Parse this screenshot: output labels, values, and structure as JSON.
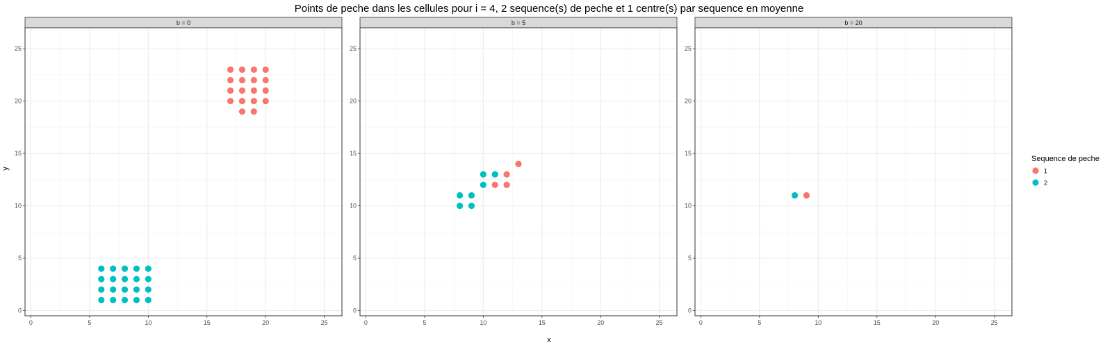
{
  "chart_data": {
    "type": "scatter",
    "title": "Points de peche dans les cellules pour i = 4, 2 sequence(s) de peche et 1 centre(s) par sequence en moyenne",
    "xlabel": "x",
    "ylabel": "y",
    "xlim": [
      -0.5,
      26.5
    ],
    "ylim": [
      -0.5,
      27
    ],
    "x_ticks": [
      "0",
      "5",
      "10",
      "15",
      "20",
      "25"
    ],
    "y_ticks": [
      "0",
      "5",
      "10",
      "15",
      "20",
      "25"
    ],
    "grid": true,
    "legend": {
      "title": "Sequence de peche",
      "placement": "right",
      "entries": [
        {
          "label": "1",
          "color": "#F8766D"
        },
        {
          "label": "2",
          "color": "#00BFC4"
        }
      ]
    },
    "panels": [
      {
        "label": "b = 0",
        "series": [
          {
            "name": "1",
            "color": "#F8766D",
            "points": [
              [
                17,
                23
              ],
              [
                18,
                23
              ],
              [
                19,
                23
              ],
              [
                20,
                23
              ],
              [
                17,
                22
              ],
              [
                18,
                22
              ],
              [
                19,
                22
              ],
              [
                20,
                22
              ],
              [
                17,
                21
              ],
              [
                18,
                21
              ],
              [
                19,
                21
              ],
              [
                20,
                21
              ],
              [
                17,
                20
              ],
              [
                18,
                20
              ],
              [
                19,
                20
              ],
              [
                20,
                20
              ],
              [
                18,
                19
              ],
              [
                19,
                19
              ]
            ]
          },
          {
            "name": "2",
            "color": "#00BFC4",
            "points": [
              [
                6,
                4
              ],
              [
                7,
                4
              ],
              [
                8,
                4
              ],
              [
                9,
                4
              ],
              [
                10,
                4
              ],
              [
                6,
                3
              ],
              [
                7,
                3
              ],
              [
                8,
                3
              ],
              [
                9,
                3
              ],
              [
                10,
                3
              ],
              [
                6,
                2
              ],
              [
                7,
                2
              ],
              [
                8,
                2
              ],
              [
                9,
                2
              ],
              [
                10,
                2
              ],
              [
                6,
                1
              ],
              [
                7,
                1
              ],
              [
                8,
                1
              ],
              [
                9,
                1
              ],
              [
                10,
                1
              ]
            ]
          }
        ]
      },
      {
        "label": "b = 5",
        "series": [
          {
            "name": "1",
            "color": "#F8766D",
            "points": [
              [
                13,
                14
              ],
              [
                12,
                13
              ],
              [
                11,
                12
              ],
              [
                12,
                12
              ]
            ]
          },
          {
            "name": "2",
            "color": "#00BFC4",
            "points": [
              [
                10,
                13
              ],
              [
                11,
                13
              ],
              [
                10,
                12
              ],
              [
                8,
                11
              ],
              [
                9,
                11
              ],
              [
                8,
                10
              ],
              [
                9,
                10
              ]
            ]
          }
        ]
      },
      {
        "label": "b = 20",
        "series": [
          {
            "name": "1",
            "color": "#F8766D",
            "points": [
              [
                9,
                11
              ]
            ]
          },
          {
            "name": "2",
            "color": "#00BFC4",
            "points": [
              [
                8,
                11
              ]
            ]
          }
        ]
      }
    ]
  }
}
